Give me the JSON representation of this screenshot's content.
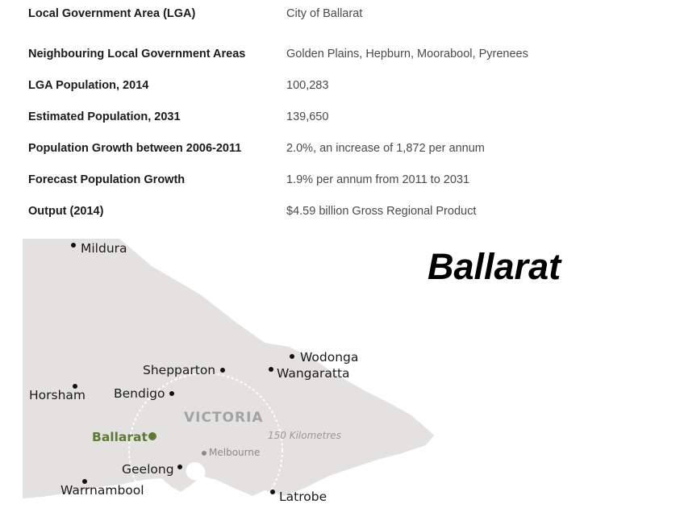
{
  "info_table": {
    "rows": [
      {
        "label": "Local Government Area (LGA)",
        "value": "City of Ballarat"
      },
      {
        "label": "Neighbouring Local Government Areas",
        "value": "Golden Plains, Hepburn, Moorabool, Pyrenees"
      },
      {
        "label": "LGA Population, 2014",
        "value": "100,283"
      },
      {
        "label": "Estimated Population, 2031",
        "value": "139,650"
      },
      {
        "label": "Population Growth between 2006-2011",
        "value": "2.0%, an increase of 1,872 per annum"
      },
      {
        "label": "Forecast Population Growth",
        "value": "1.9% per annum from 2011 to 2031"
      },
      {
        "label": "Output (2014)",
        "value": "$4.59 billion Gross Regional Product"
      }
    ]
  },
  "map": {
    "region_label": "VICTORIA",
    "radius_label": "150 Kilometres",
    "highlight_city": "Ballarat",
    "cities": {
      "mildura": "Mildura",
      "wodonga": "Wodonga",
      "shepparton": "Shepparton",
      "wangaratta": "Wangaratta",
      "horsham": "Horsham",
      "bendigo": "Bendigo",
      "melbourne": "Melbourne",
      "geelong": "Geelong",
      "warrnambool": "Warrnambool",
      "latrobe": "Latrobe"
    },
    "colors": {
      "land": "#e3e2e0",
      "highlight": "#5e7a32"
    }
  },
  "title": "Ballarat"
}
